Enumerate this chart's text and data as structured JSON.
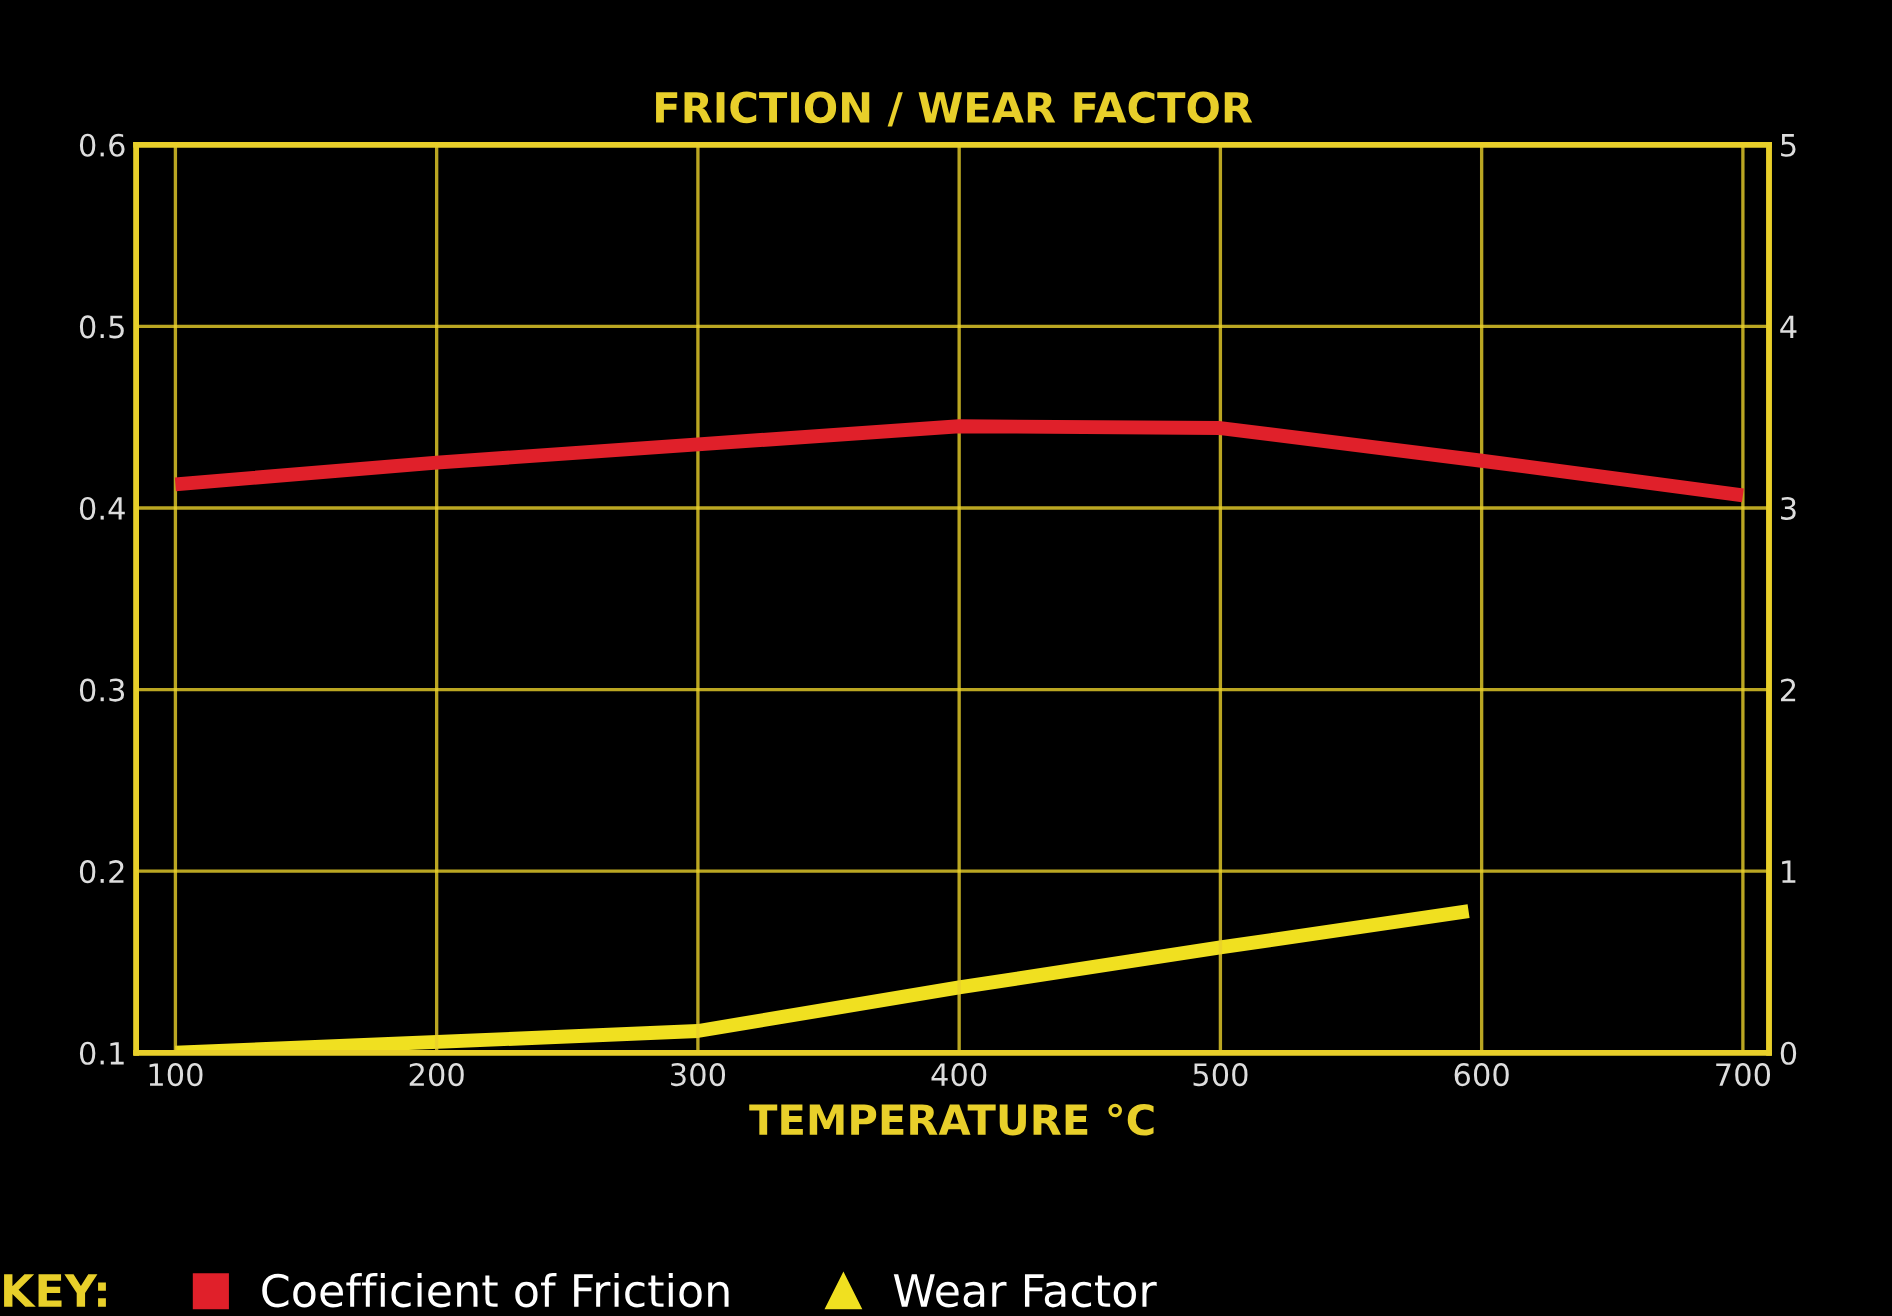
{
  "chart_data": {
    "type": "line",
    "title": "FRICTION / WEAR FACTOR",
    "xlabel": "TEMPERATURE °C",
    "legend_title": "KEY:",
    "legend": "bottom",
    "grid": true,
    "xlim": [
      85,
      710
    ],
    "xticks": [
      100,
      200,
      300,
      400,
      500,
      600,
      700
    ],
    "ylim": [
      0.1,
      0.6
    ],
    "yticks": [
      0.1,
      0.2,
      0.3,
      0.4,
      0.5,
      0.6
    ],
    "y2lim": [
      0,
      5
    ],
    "y2ticks": [
      0,
      1,
      2,
      3,
      4,
      5
    ],
    "series": [
      {
        "name": "Coefficient of Friction",
        "color": "#e0202a",
        "x": [
          100,
          200,
          300,
          400,
          500,
          600,
          700
        ],
        "values": [
          0.413,
          0.425,
          0.435,
          0.445,
          0.444,
          0.426,
          0.407
        ]
      },
      {
        "name": "Wear Factor",
        "color": "#f0e020",
        "axis": "y2",
        "x": [
          100,
          300,
          400,
          500,
          595
        ],
        "values": [
          0,
          0.12,
          0.36,
          0.58,
          0.78
        ]
      }
    ]
  }
}
